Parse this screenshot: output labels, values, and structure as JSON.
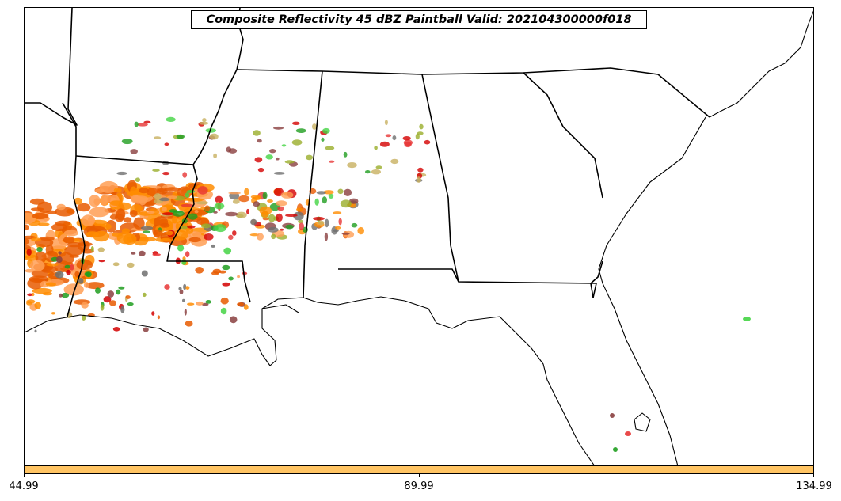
{
  "title": "Composite Reflectivity 45 dBZ Paintball Valid: 202104300000f018",
  "colors": {
    "colorbar_fill": "#ffc463",
    "member_palette": [
      "#ff8c00",
      "#e85a00",
      "#ff9f55",
      "#d40000",
      "#e73535",
      "#1f9e1f",
      "#44d444",
      "#9aae2a",
      "#8a3f3f",
      "#6e6e6e",
      "#c8b060"
    ]
  },
  "colorbar": {
    "ticks": [
      {
        "label": "44.99",
        "value": 44.99
      },
      {
        "label": "89.99",
        "value": 89.99
      },
      {
        "label": "134.99",
        "value": 134.99
      }
    ],
    "range": [
      44.99,
      134.99
    ]
  }
}
